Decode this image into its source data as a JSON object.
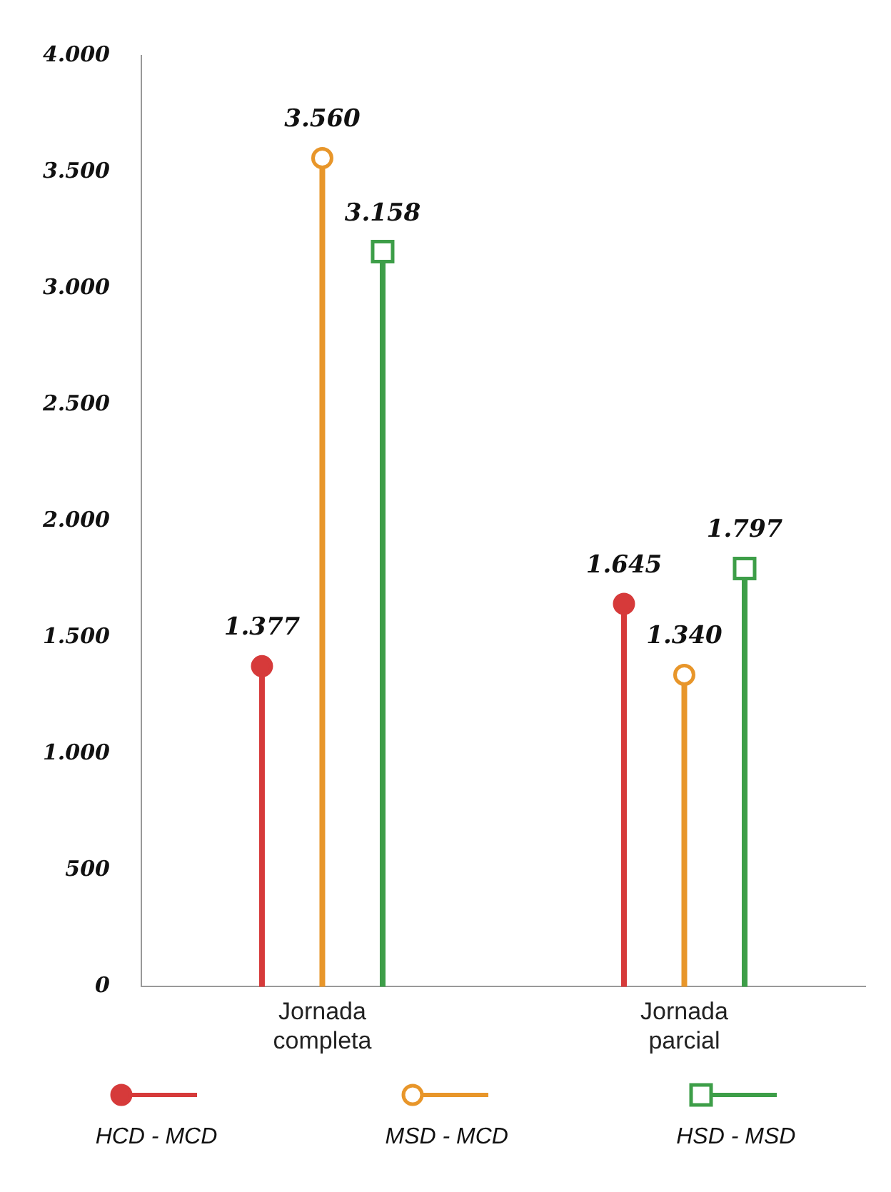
{
  "chart_data": {
    "type": "lollipop",
    "categories": [
      "Jornada completa",
      "Jornada parcial"
    ],
    "ylim": [
      0,
      4000
    ],
    "yticks": [
      {
        "value": 0,
        "label": "0"
      },
      {
        "value": 500,
        "label": "500"
      },
      {
        "value": 1000,
        "label": "1.000"
      },
      {
        "value": 1500,
        "label": "1.500"
      },
      {
        "value": 2000,
        "label": "2.000"
      },
      {
        "value": 2500,
        "label": "2.500"
      },
      {
        "value": 3000,
        "label": "3.000"
      },
      {
        "value": 3500,
        "label": "3.500"
      },
      {
        "value": 4000,
        "label": "4.000"
      }
    ],
    "grid": false,
    "legend": "bottom",
    "series": [
      {
        "name": "HCD - MCD",
        "color": "#d63a3a",
        "marker": "circle",
        "values": [
          1377,
          1645
        ],
        "value_labels": [
          "1.377",
          "1.645"
        ]
      },
      {
        "name": "MSD - MCD",
        "color": "#e8962a",
        "marker": "circle",
        "values": [
          3560,
          1340
        ],
        "value_labels": [
          "3.560",
          "1.340"
        ]
      },
      {
        "name": "HSD - MSD",
        "color": "#3d9e48",
        "marker": "square",
        "values": [
          3158,
          1797
        ],
        "value_labels": [
          "3.158",
          "1.797"
        ]
      }
    ]
  }
}
